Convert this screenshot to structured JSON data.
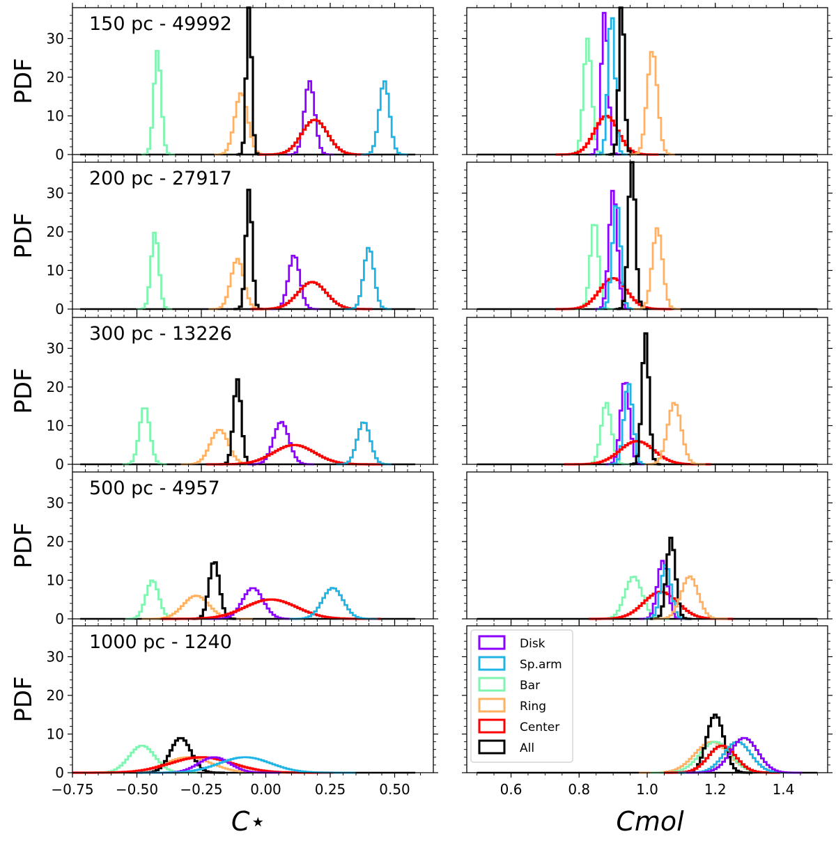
{
  "legend": [
    {
      "key": "Disk",
      "label": "Disk",
      "color": "#8B00FF"
    },
    {
      "key": "Sp.arm",
      "label": "Sp.arm",
      "color": "#1EB4E6"
    },
    {
      "key": "Bar",
      "label": "Bar",
      "color": "#7FF5B0"
    },
    {
      "key": "Ring",
      "label": "Ring",
      "color": "#FFB060"
    },
    {
      "key": "Center",
      "label": "Center",
      "color": "#FF0000"
    },
    {
      "key": "All",
      "label": "All",
      "color": "#000000"
    }
  ],
  "chart_data": [
    {
      "type": "histogram-grid",
      "ylabel": "PDF",
      "left_xlabel": "C⋆",
      "right_xlabel": "Cmol",
      "left_xlim": [
        -0.75,
        0.65
      ],
      "right_xlim": [
        0.47,
        1.53
      ],
      "ylim": [
        0,
        38
      ],
      "left_xticks": [
        "−0.75",
        "−0.50",
        "−0.25",
        "0.00",
        "0.25",
        "0.50"
      ],
      "left_xtick_values": [
        -0.75,
        -0.5,
        -0.25,
        0.0,
        0.25,
        0.5
      ],
      "right_xticks": [
        "0.6",
        "0.8",
        "1.0",
        "1.2",
        "1.4"
      ],
      "right_xtick_values": [
        0.6,
        0.8,
        1.0,
        1.2,
        1.4
      ],
      "yticks": [
        "0",
        "10",
        "20",
        "30"
      ],
      "ytick_values": [
        0,
        10,
        20,
        30
      ],
      "rows": [
        {
          "label": "150 pc - 49992",
          "left": [
            {
              "name": "Bar",
              "mu": -0.42,
              "sigma": 0.014,
              "peak": 27
            },
            {
              "name": "Ring",
              "mu": -0.095,
              "sigma": 0.025,
              "peak": 16
            },
            {
              "name": "All",
              "mu": -0.065,
              "sigma": 0.01,
              "peak": 40
            },
            {
              "name": "Disk",
              "mu": 0.17,
              "sigma": 0.02,
              "peak": 19
            },
            {
              "name": "Center",
              "mu": 0.19,
              "sigma": 0.05,
              "peak": 9
            },
            {
              "name": "Sp.arm",
              "mu": 0.46,
              "sigma": 0.02,
              "peak": 19
            }
          ],
          "right": [
            {
              "name": "Bar",
              "mu": 0.825,
              "sigma": 0.012,
              "peak": 30
            },
            {
              "name": "Disk",
              "mu": 0.875,
              "sigma": 0.01,
              "peak": 37
            },
            {
              "name": "Center",
              "mu": 0.88,
              "sigma": 0.035,
              "peak": 10
            },
            {
              "name": "Sp.arm",
              "mu": 0.895,
              "sigma": 0.01,
              "peak": 37
            },
            {
              "name": "All",
              "mu": 0.925,
              "sigma": 0.008,
              "peak": 40
            },
            {
              "name": "Ring",
              "mu": 1.015,
              "sigma": 0.015,
              "peak": 27
            }
          ]
        },
        {
          "label": "200 pc - 27917",
          "left": [
            {
              "name": "Bar",
              "mu": -0.43,
              "sigma": 0.015,
              "peak": 20
            },
            {
              "name": "Ring",
              "mu": -0.11,
              "sigma": 0.025,
              "peak": 13
            },
            {
              "name": "All",
              "mu": -0.065,
              "sigma": 0.012,
              "peak": 31
            },
            {
              "name": "Disk",
              "mu": 0.11,
              "sigma": 0.022,
              "peak": 14
            },
            {
              "name": "Center",
              "mu": 0.18,
              "sigma": 0.055,
              "peak": 7
            },
            {
              "name": "Sp.arm",
              "mu": 0.4,
              "sigma": 0.02,
              "peak": 16
            }
          ],
          "right": [
            {
              "name": "Bar",
              "mu": 0.845,
              "sigma": 0.012,
              "peak": 23
            },
            {
              "name": "Center",
              "mu": 0.9,
              "sigma": 0.04,
              "peak": 8
            },
            {
              "name": "Disk",
              "mu": 0.9,
              "sigma": 0.012,
              "peak": 31
            },
            {
              "name": "Sp.arm",
              "mu": 0.91,
              "sigma": 0.012,
              "peak": 28
            },
            {
              "name": "All",
              "mu": 0.955,
              "sigma": 0.01,
              "peak": 40
            },
            {
              "name": "Ring",
              "mu": 1.03,
              "sigma": 0.015,
              "peak": 21
            }
          ]
        },
        {
          "label": "300 pc - 13226",
          "left": [
            {
              "name": "Bar",
              "mu": -0.47,
              "sigma": 0.02,
              "peak": 15
            },
            {
              "name": "Ring",
              "mu": -0.18,
              "sigma": 0.035,
              "peak": 9
            },
            {
              "name": "All",
              "mu": -0.11,
              "sigma": 0.015,
              "peak": 22
            },
            {
              "name": "Disk",
              "mu": 0.06,
              "sigma": 0.03,
              "peak": 11
            },
            {
              "name": "Center",
              "mu": 0.11,
              "sigma": 0.08,
              "peak": 5
            },
            {
              "name": "Sp.arm",
              "mu": 0.38,
              "sigma": 0.025,
              "peak": 11
            }
          ],
          "right": [
            {
              "name": "Bar",
              "mu": 0.88,
              "sigma": 0.015,
              "peak": 16
            },
            {
              "name": "Disk",
              "mu": 0.935,
              "sigma": 0.013,
              "peak": 22
            },
            {
              "name": "Sp.arm",
              "mu": 0.945,
              "sigma": 0.013,
              "peak": 21
            },
            {
              "name": "Center",
              "mu": 0.97,
              "sigma": 0.05,
              "peak": 6
            },
            {
              "name": "All",
              "mu": 0.995,
              "sigma": 0.01,
              "peak": 34
            },
            {
              "name": "Ring",
              "mu": 1.08,
              "sigma": 0.02,
              "peak": 16
            }
          ]
        },
        {
          "label": "500 pc - 4957",
          "left": [
            {
              "name": "Bar",
              "mu": -0.44,
              "sigma": 0.025,
              "peak": 10
            },
            {
              "name": "Ring",
              "mu": -0.27,
              "sigma": 0.05,
              "peak": 6
            },
            {
              "name": "All",
              "mu": -0.2,
              "sigma": 0.02,
              "peak": 15
            },
            {
              "name": "Disk",
              "mu": -0.05,
              "sigma": 0.04,
              "peak": 8
            },
            {
              "name": "Center",
              "mu": 0.02,
              "sigma": 0.1,
              "peak": 5
            },
            {
              "name": "Sp.arm",
              "mu": 0.26,
              "sigma": 0.04,
              "peak": 8
            }
          ],
          "right": [
            {
              "name": "Bar",
              "mu": 0.96,
              "sigma": 0.025,
              "peak": 11
            },
            {
              "name": "Center",
              "mu": 1.04,
              "sigma": 0.05,
              "peak": 7
            },
            {
              "name": "Disk",
              "mu": 1.045,
              "sigma": 0.015,
              "peak": 15
            },
            {
              "name": "Sp.arm",
              "mu": 1.055,
              "sigma": 0.015,
              "peak": 14
            },
            {
              "name": "All",
              "mu": 1.07,
              "sigma": 0.013,
              "peak": 21
            },
            {
              "name": "Ring",
              "mu": 1.125,
              "sigma": 0.025,
              "peak": 11
            }
          ]
        },
        {
          "label": "1000 pc - 1240",
          "left": [
            {
              "name": "Bar",
              "mu": -0.48,
              "sigma": 0.05,
              "peak": 7
            },
            {
              "name": "Ring",
              "mu": -0.3,
              "sigma": 0.09,
              "peak": 4
            },
            {
              "name": "All",
              "mu": -0.33,
              "sigma": 0.04,
              "peak": 9
            },
            {
              "name": "Center",
              "mu": -0.25,
              "sigma": 0.12,
              "peak": 4
            },
            {
              "name": "Disk",
              "mu": -0.2,
              "sigma": 0.06,
              "peak": 4
            },
            {
              "name": "Sp.arm",
              "mu": -0.08,
              "sigma": 0.1,
              "peak": 4
            }
          ],
          "right": [
            {
              "name": "Ring",
              "mu": 1.19,
              "sigma": 0.05,
              "peak": 8
            },
            {
              "name": "Bar",
              "mu": 1.2,
              "sigma": 0.045,
              "peak": 8
            },
            {
              "name": "All",
              "mu": 1.2,
              "sigma": 0.025,
              "peak": 15
            },
            {
              "name": "Center",
              "mu": 1.22,
              "sigma": 0.04,
              "peak": 7
            },
            {
              "name": "Sp.arm",
              "mu": 1.265,
              "sigma": 0.04,
              "peak": 8
            },
            {
              "name": "Disk",
              "mu": 1.285,
              "sigma": 0.04,
              "peak": 9
            }
          ]
        }
      ]
    }
  ]
}
